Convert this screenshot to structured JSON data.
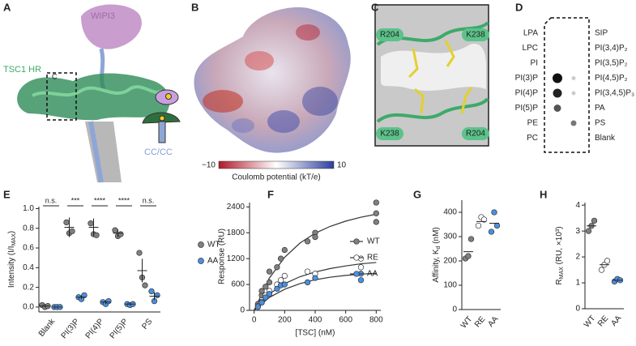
{
  "panel_a": {
    "label": "A",
    "protein": "WIPI3",
    "domain": "TSC1 HR",
    "inset": "C",
    "coil": "CC/CC"
  },
  "panel_b": {
    "label": "B",
    "colorbar": {
      "ticks": [
        {
          "value": -10,
          "label": "−10"
        },
        10
      ],
      "label": "Coulomb potential (kT/e)"
    }
  },
  "panel_c": {
    "label": "C",
    "residues": [
      "R204",
      "K238",
      "K238",
      "R204"
    ]
  },
  "panel_d": {
    "label": "D",
    "left": [
      "LPA",
      "LPC",
      "PI",
      "PI(3)P",
      "PI(4)P",
      "PI(5)P",
      "PE",
      "PC"
    ],
    "right": [
      "SIP",
      "PI(3,4)P₂",
      "PI(3,5)P₂",
      "PI(4,5)P₂",
      "PI(3,4,5)P₃",
      "PA",
      "PS",
      "Blank"
    ]
  },
  "chart_data": [
    {
      "type": "dot",
      "panel_label": "E",
      "y_label": {
        "main": "Intensity (I/I",
        "sub": "MAX",
        "end": ")"
      },
      "categories": [
        "Blank",
        "PI(3)P",
        "PI(4)P",
        "PI(5)P",
        "PS"
      ],
      "significance": [
        "n.s.",
        "***",
        "****",
        "****",
        "n.s."
      ],
      "ylim": [
        -0.05,
        1.02
      ],
      "yticks": [
        {
          "value": 0,
          "label": "0.0"
        },
        0.2,
        0.4,
        0.6,
        0.8,
        {
          "value": 1,
          "label": "1.0"
        }
      ],
      "legend": "right",
      "series": [
        {
          "name": "WT",
          "color": "#808080",
          "values": [
            0.01,
            0.81,
            0.81,
            0.75,
            0.37
          ],
          "errors": [
            0.01,
            0.1,
            0.09,
            0.04,
            0.12
          ],
          "points": [
            [
              0.02,
              0.0,
              0.01
            ],
            [
              0.86,
              0.75,
              0.77
            ],
            [
              0.85,
              0.74,
              0.73
            ],
            [
              0.78,
              0.72,
              0.74
            ],
            [
              0.55,
              0.3,
              0.22
            ]
          ]
        },
        {
          "name": "AA",
          "color": "#4a90e2",
          "values": [
            0.0,
            0.1,
            0.05,
            0.03,
            0.11
          ],
          "errors": [
            0.0,
            0.02,
            0.02,
            0.01,
            0.04
          ],
          "points": [
            [
              0.0,
              0.0,
              0.0
            ],
            [
              0.1,
              0.08,
              0.12
            ],
            [
              0.05,
              0.03,
              0.06
            ],
            [
              0.03,
              0.02,
              0.03
            ],
            [
              0.16,
              0.06,
              0.12
            ]
          ]
        }
      ]
    },
    {
      "type": "scatter",
      "panel_label": "F",
      "y_label": "Response (RU)",
      "x_label": "[TSC] (nM)",
      "xlim": [
        -30,
        830
      ],
      "xticks": [
        0,
        200,
        400,
        600,
        800
      ],
      "ylim": [
        0,
        2500
      ],
      "yticks": [
        0,
        600,
        1200,
        1800,
        2400
      ],
      "legend": "right",
      "fit_x": [
        0,
        100,
        200,
        300,
        400,
        500,
        600,
        700,
        800
      ],
      "series": [
        {
          "name": "WT",
          "color": "#808080",
          "x": [
            25,
            50,
            50,
            75,
            100,
            100,
            150,
            175,
            200,
            350,
            400,
            400,
            800,
            800,
            800
          ],
          "values": [
            150,
            350,
            450,
            550,
            650,
            900,
            1000,
            1200,
            1400,
            1600,
            1800,
            1700,
            2500,
            2250,
            2050
          ],
          "fit_values": [
            0,
            750,
            1230,
            1560,
            1790,
            1950,
            2070,
            2160,
            2230
          ]
        },
        {
          "name": "RE",
          "color": "#ffffff",
          "x": [
            25,
            50,
            75,
            100,
            150,
            175,
            200,
            350,
            400,
            700,
            700
          ],
          "values": [
            100,
            200,
            350,
            450,
            600,
            700,
            800,
            900,
            850,
            1200,
            1000
          ],
          "fit_values": [
            0,
            380,
            620,
            780,
            890,
            970,
            1030,
            1080,
            1110
          ]
        },
        {
          "name": "AA",
          "color": "#4a90e2",
          "x": [
            25,
            50,
            75,
            100,
            150,
            175,
            200,
            350,
            400,
            700,
            700
          ],
          "values": [
            80,
            180,
            300,
            380,
            500,
            580,
            600,
            650,
            750,
            850,
            700
          ],
          "fit_values": [
            0,
            300,
            490,
            620,
            710,
            770,
            810,
            840,
            860
          ]
        }
      ]
    },
    {
      "type": "dot",
      "panel_label": "G",
      "y_label": {
        "main": "Affinity, K",
        "sub": "d",
        "end": " (nM)"
      },
      "categories": [
        "WT",
        "RE",
        "AA"
      ],
      "ylim": [
        0,
        450
      ],
      "yticks": [
        0,
        100,
        200,
        300,
        400
      ],
      "series": [
        {
          "colors": [
            "#808080",
            "#ffffff",
            "#4a90e2"
          ],
          "values": [
            238,
            362,
            355
          ],
          "points": [
            [
              210,
              220,
              290
            ],
            [
              345,
              380,
              370
            ],
            [
              320,
              400,
              345
            ]
          ]
        }
      ]
    },
    {
      "type": "dot",
      "panel_label": "H",
      "y_label": {
        "main": "R",
        "sub": "MAX",
        "end": " (RU, ×10³)"
      },
      "categories": [
        "WT",
        "RE",
        "AA"
      ],
      "ylim": [
        0,
        4.1
      ],
      "yticks": [
        0,
        1,
        2,
        3,
        4
      ],
      "series": [
        {
          "colors": [
            "#808080",
            "#ffffff",
            "#4a90e2"
          ],
          "values": [
            3.2,
            1.7,
            1.1
          ],
          "points": [
            [
              3.0,
              3.2,
              3.4
            ],
            [
              1.5,
              1.7,
              1.85
            ],
            [
              1.05,
              1.15,
              1.1
            ]
          ]
        }
      ]
    }
  ]
}
